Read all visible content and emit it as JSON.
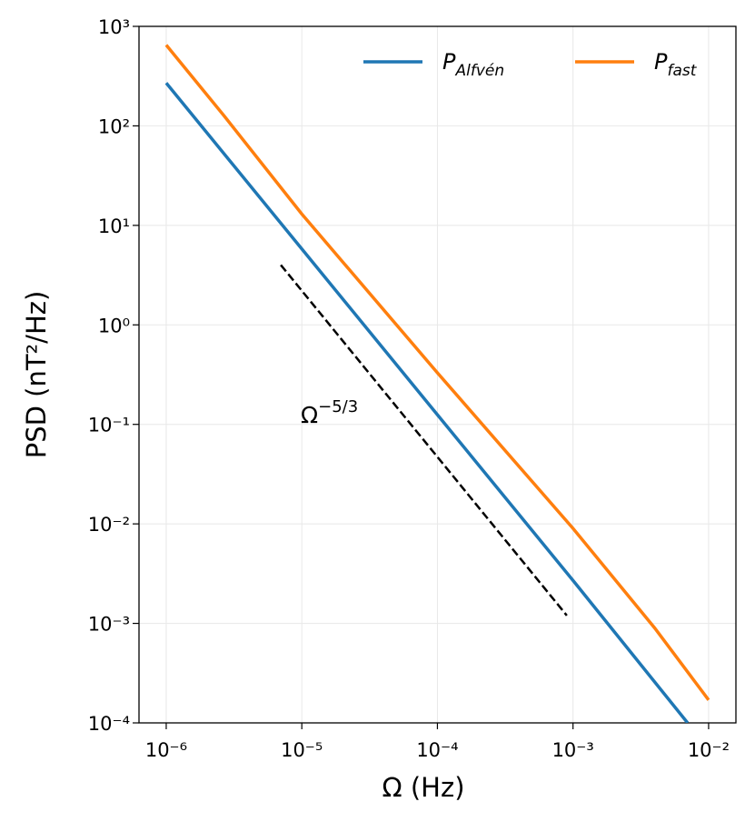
{
  "chart_data": {
    "type": "line",
    "xlabel": "Ω (Hz)",
    "ylabel": "PSD (nT²/Hz)",
    "xscale": "log",
    "yscale": "log",
    "xlim": [
      6.3e-07,
      0.0159
    ],
    "ylim": [
      0.0001,
      1000
    ],
    "xticks": [
      {
        "value": 1e-06,
        "label": "10⁻⁶"
      },
      {
        "value": 1e-05,
        "label": "10⁻⁵"
      },
      {
        "value": 0.0001,
        "label": "10⁻⁴"
      },
      {
        "value": 0.001,
        "label": "10⁻³"
      },
      {
        "value": 0.01,
        "label": "10⁻²"
      }
    ],
    "yticks": [
      {
        "value": 0.0001,
        "label": "10⁻⁴"
      },
      {
        "value": 0.001,
        "label": "10⁻³"
      },
      {
        "value": 0.01,
        "label": "10⁻²"
      },
      {
        "value": 0.1,
        "label": "10⁻¹"
      },
      {
        "value": 1,
        "label": "10⁰"
      },
      {
        "value": 10,
        "label": "10¹"
      },
      {
        "value": 100,
        "label": "10²"
      },
      {
        "value": 1000,
        "label": "10³"
      }
    ],
    "grid": true,
    "legend": "upper right",
    "series": [
      {
        "name": "P",
        "name_sub": "Alfvén",
        "color": "#1f77b4",
        "x": [
          1e-06,
          1e-05,
          0.0001,
          0.001,
          0.007
        ],
        "values": [
          270,
          5.8,
          0.125,
          0.0027,
          0.0001
        ]
      },
      {
        "name": "P",
        "name_sub": "fast",
        "color": "#ff7f0e",
        "x": [
          1e-06,
          2.7e-06,
          1e-05,
          0.0001,
          0.001,
          0.004,
          0.01
        ],
        "values": [
          650,
          124,
          13,
          0.33,
          0.009,
          0.0009,
          0.00017
        ]
      }
    ],
    "reference_line": {
      "x": [
        7e-06,
        0.0009
      ],
      "values": [
        4,
        0.0012
      ],
      "color": "#000000",
      "style": "dashed"
    },
    "annotation": {
      "text": "Ω",
      "superscript": "−5/3"
    }
  }
}
